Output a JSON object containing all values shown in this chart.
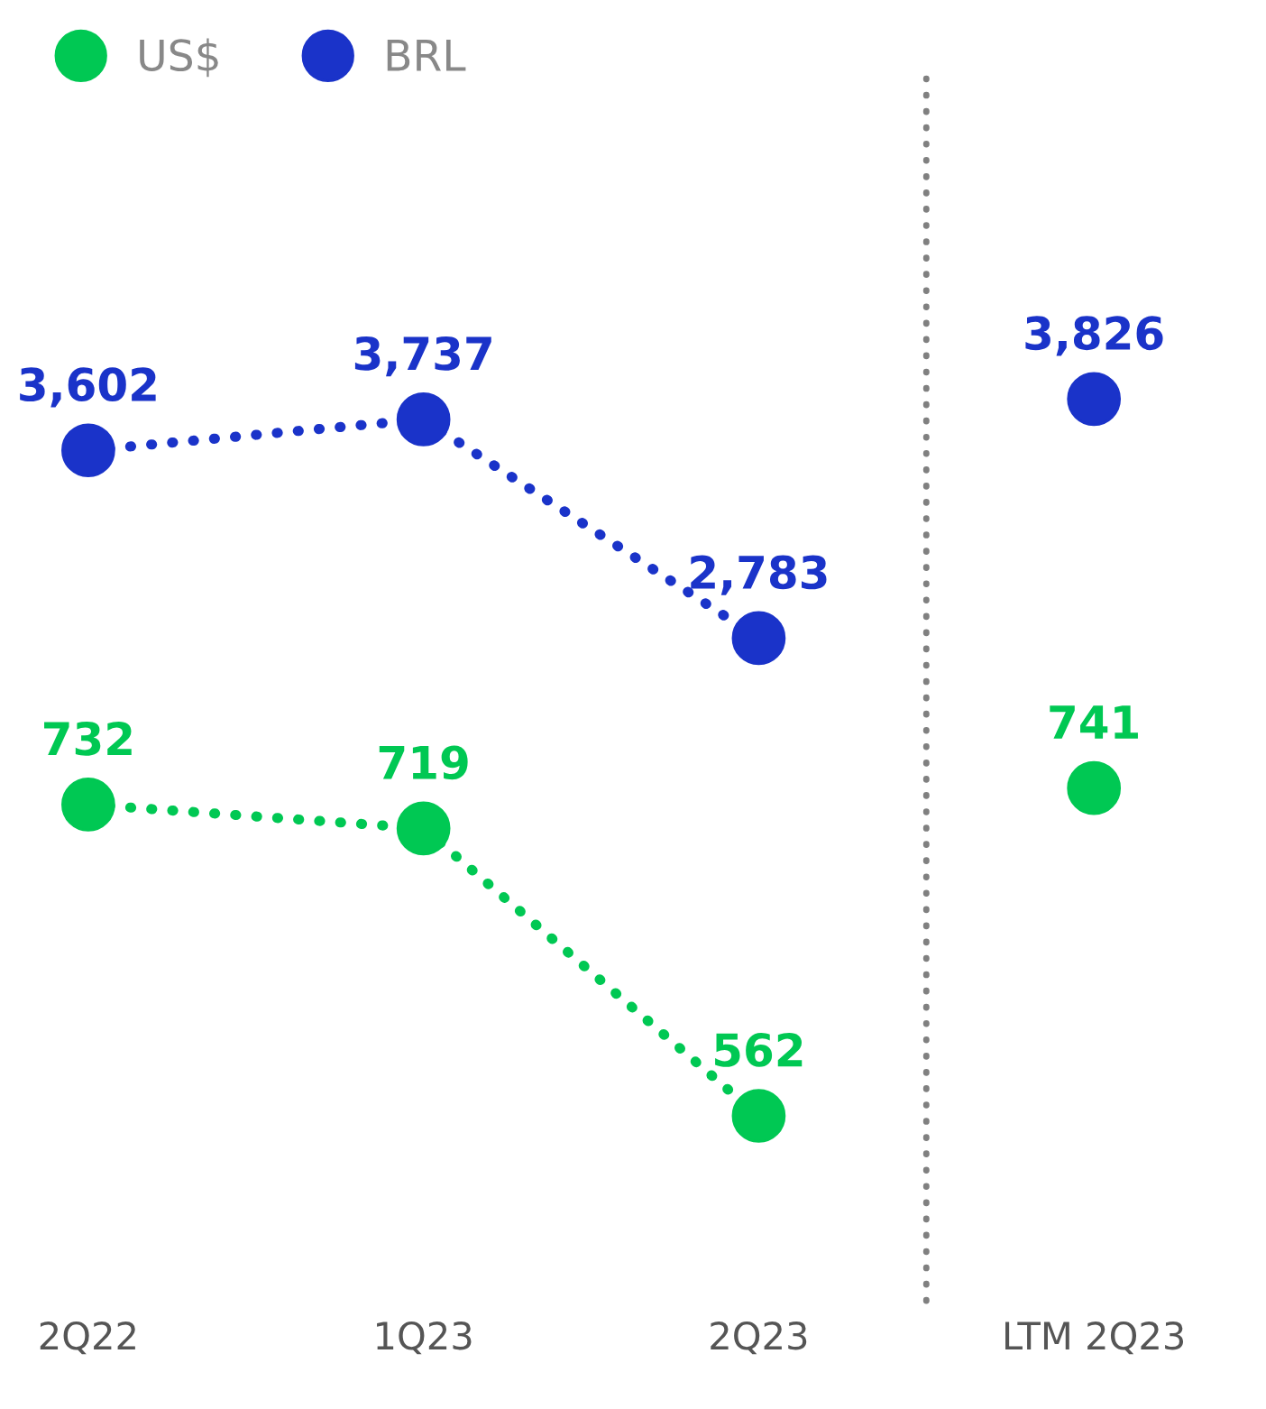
{
  "chart_data": {
    "type": "line",
    "categories": [
      "2Q22",
      "1Q23",
      "2Q23",
      "LTM 2Q23"
    ],
    "series": [
      {
        "name": "US$",
        "axis": "y",
        "color": "#00c853",
        "values": [
          732,
          719,
          562,
          null
        ],
        "value_labels": [
          "732",
          "719",
          "562",
          null
        ]
      },
      {
        "name": "BRL",
        "axis": "y2",
        "color": "#1a33c9",
        "values": [
          3602,
          3737,
          2783,
          null
        ],
        "value_labels": [
          "3,602",
          "3,737",
          "2,783",
          null
        ]
      },
      {
        "type": "scatter",
        "axis": "y",
        "color": "#00c853",
        "values": [
          null,
          null,
          null,
          741
        ],
        "value_labels": [
          null,
          null,
          null,
          "741"
        ]
      },
      {
        "type": "scatter",
        "axis": "y2",
        "color": "#1a33c9",
        "values": [
          null,
          null,
          null,
          3826
        ],
        "value_labels": [
          null,
          null,
          null,
          "3,826"
        ]
      }
    ],
    "ylim": [
      461,
      1131
    ],
    "y2lim": [
      -106,
      5243
    ],
    "tick_labels": "x",
    "marker": "circle",
    "line_style": "dotted",
    "legend": "top left"
  }
}
